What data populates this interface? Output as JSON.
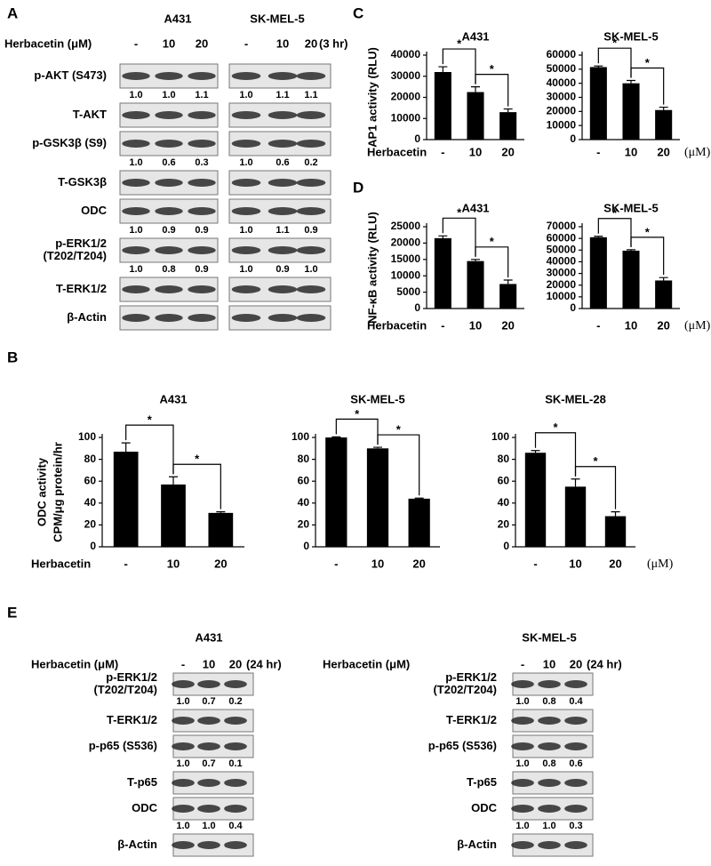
{
  "panel_A": {
    "label": "A",
    "treatment_label": "Herbacetin (μM)",
    "blocks": [
      {
        "title": "A431",
        "lanes": [
          "-",
          "10",
          "20"
        ]
      },
      {
        "title": "SK-MEL-5",
        "lanes": [
          "-",
          "10",
          "20"
        ],
        "time": "(3 hr)"
      }
    ],
    "rows": [
      {
        "label": [
          "p-AKT (S473)"
        ],
        "quant": [
          [
            "1.0",
            "1.0",
            "1.1"
          ],
          [
            "1.0",
            "1.1",
            "1.1"
          ]
        ]
      },
      {
        "label": [
          "T-AKT"
        ]
      },
      {
        "label": [
          "p-GSK3β (S9)"
        ],
        "quant": [
          [
            "1.0",
            "0.6",
            "0.3"
          ],
          [
            "1.0",
            "0.6",
            "0.2"
          ]
        ]
      },
      {
        "label": [
          "T-GSK3β"
        ]
      },
      {
        "label": [
          "ODC"
        ],
        "quant": [
          [
            "1.0",
            "0.9",
            "0.9"
          ],
          [
            "1.0",
            "1.1",
            "0.9"
          ]
        ]
      },
      {
        "label": [
          "p-ERK1/2",
          "(T202/T204)"
        ],
        "quant": [
          [
            "1.0",
            "0.8",
            "0.9"
          ],
          [
            "1.0",
            "0.9",
            "1.0"
          ]
        ]
      },
      {
        "label": [
          "T-ERK1/2"
        ]
      },
      {
        "label": [
          "β-Actin"
        ]
      }
    ]
  },
  "panel_E": {
    "label": "E",
    "blocks": [
      {
        "title": "A431",
        "treatment_label": "Herbacetin (μM)",
        "lanes": [
          "-",
          "10",
          "20"
        ],
        "time": "(24 hr)",
        "rows": [
          {
            "label": [
              "p-ERK1/2",
              "(T202/T204)"
            ],
            "quant": [
              "1.0",
              "0.7",
              "0.2"
            ]
          },
          {
            "label": [
              "T-ERK1/2"
            ]
          },
          {
            "label": [
              "p-p65 (S536)"
            ],
            "quant": [
              "1.0",
              "0.7",
              "0.1"
            ]
          },
          {
            "label": [
              "T-p65"
            ]
          },
          {
            "label": [
              "ODC"
            ],
            "quant": [
              "1.0",
              "1.0",
              "0.4"
            ]
          },
          {
            "label": [
              "β-Actin"
            ]
          }
        ]
      },
      {
        "title": "SK-MEL-5",
        "treatment_label": "Herbacetin (μM)",
        "lanes": [
          "-",
          "10",
          "20"
        ],
        "time": "(24 hr)",
        "rows": [
          {
            "label": [
              "p-ERK1/2",
              "(T202/T204)"
            ],
            "quant": [
              "1.0",
              "0.8",
              "0.4"
            ]
          },
          {
            "label": [
              "T-ERK1/2"
            ]
          },
          {
            "label": [
              "p-p65 (S536)"
            ],
            "quant": [
              "1.0",
              "0.8",
              "0.6"
            ]
          },
          {
            "label": [
              "T-p65"
            ]
          },
          {
            "label": [
              "ODC"
            ],
            "quant": [
              "1.0",
              "1.0",
              "0.3"
            ]
          },
          {
            "label": [
              "β-Actin"
            ]
          }
        ]
      }
    ]
  },
  "chart_data": [
    {
      "type": "bar",
      "panel_label": "C",
      "title": "A431",
      "ylabel": [
        "AP1 activity (RLU)"
      ],
      "xlabel": "Herbacetin",
      "categories": [
        "-",
        "10",
        "20"
      ],
      "values": [
        32000,
        22500,
        13000
      ],
      "errors": [
        2500,
        2500,
        1500
      ],
      "color": "#000000",
      "ylim": [
        0,
        40000
      ],
      "yticks": [
        0,
        10000,
        20000,
        30000,
        40000
      ],
      "significance": [
        "*",
        "*"
      ]
    },
    {
      "type": "bar",
      "title": "SK-MEL-5",
      "unit": "(μM)",
      "categories": [
        "-",
        "10",
        "20"
      ],
      "values": [
        51500,
        40000,
        21000
      ],
      "errors": [
        800,
        2000,
        2000
      ],
      "color": "#000000",
      "ylim": [
        0,
        60000
      ],
      "yticks": [
        0,
        10000,
        20000,
        30000,
        40000,
        50000,
        60000
      ],
      "significance": [
        "*",
        "*"
      ]
    },
    {
      "type": "bar",
      "panel_label": "D",
      "title": "A431",
      "ylabel": [
        "NF-κB activity (RLU)"
      ],
      "xlabel": "Herbacetin",
      "categories": [
        "-",
        "10",
        "20"
      ],
      "values": [
        21500,
        14500,
        7500
      ],
      "errors": [
        700,
        500,
        1200
      ],
      "color": "#000000",
      "ylim": [
        0,
        25000
      ],
      "yticks": [
        0,
        5000,
        10000,
        15000,
        20000,
        25000
      ],
      "significance": [
        "*",
        "*"
      ]
    },
    {
      "type": "bar",
      "title": "SK-MEL-5",
      "unit": "(μM)",
      "categories": [
        "-",
        "10",
        "20"
      ],
      "values": [
        61000,
        49500,
        24000
      ],
      "errors": [
        800,
        800,
        2500
      ],
      "color": "#000000",
      "ylim": [
        0,
        70000
      ],
      "yticks": [
        0,
        10000,
        20000,
        30000,
        40000,
        50000,
        60000,
        70000
      ],
      "significance": [
        "*",
        "*"
      ]
    },
    {
      "type": "bar",
      "panel_label": "B",
      "title": "A431",
      "ylabel": [
        "ODC activity",
        "CPM/μg protein/hr"
      ],
      "xlabel": "Herbacetin",
      "categories": [
        "-",
        "10",
        "20"
      ],
      "values": [
        87,
        57,
        31
      ],
      "errors": [
        8,
        7,
        1
      ],
      "color": "#000000",
      "ylim": [
        0,
        100
      ],
      "yticks": [
        0,
        20,
        40,
        60,
        80,
        100
      ],
      "significance": [
        "*",
        "*"
      ]
    },
    {
      "type": "bar",
      "title": "SK-MEL-5",
      "categories": [
        "-",
        "10",
        "20"
      ],
      "values": [
        100,
        90,
        44
      ],
      "errors": [
        0.5,
        1,
        0.5
      ],
      "color": "#000000",
      "ylim": [
        0,
        100
      ],
      "yticks": [
        0,
        20,
        40,
        60,
        80,
        100
      ],
      "significance": [
        "*",
        "*"
      ]
    },
    {
      "type": "bar",
      "title": "SK-MEL-28",
      "unit": "(μM)",
      "categories": [
        "-",
        "10",
        "20"
      ],
      "values": [
        86,
        55,
        28
      ],
      "errors": [
        2,
        7,
        4
      ],
      "color": "#000000",
      "ylim": [
        0,
        100
      ],
      "yticks": [
        0,
        20,
        40,
        60,
        80,
        100
      ],
      "significance": [
        "*",
        "*"
      ]
    }
  ]
}
